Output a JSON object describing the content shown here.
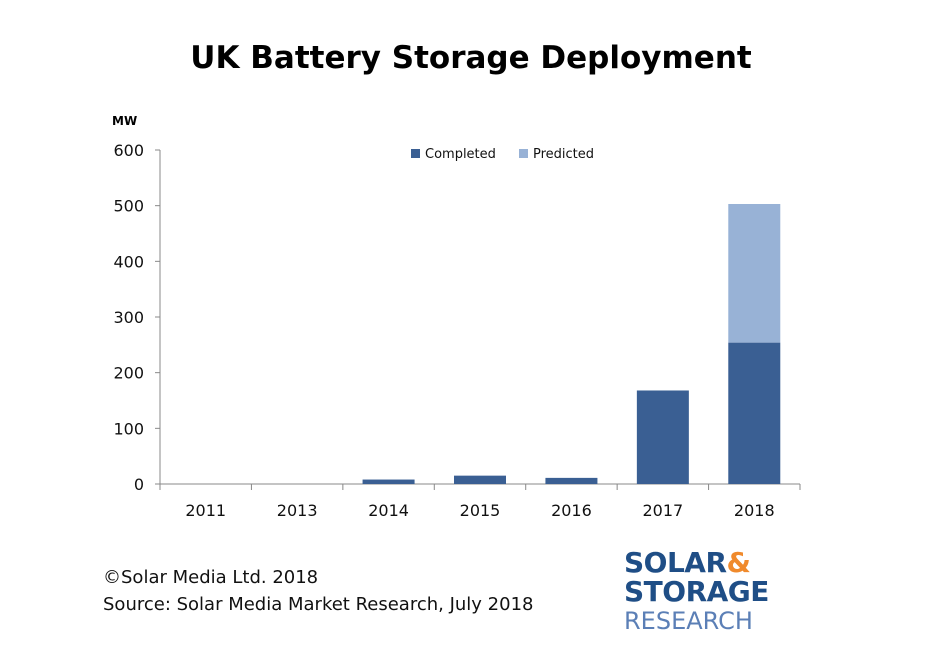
{
  "chart_data": {
    "type": "bar",
    "stacked": true,
    "title": "UK Battery Storage Deployment",
    "ylabel": "MW",
    "xlabel": "",
    "categories": [
      "2011",
      "2013",
      "2014",
      "2015",
      "2016",
      "2017",
      "2018"
    ],
    "series": [
      {
        "name": "Completed",
        "values": [
          0,
          0,
          8,
          15,
          11,
          168,
          254
        ],
        "color": "#3a5f93"
      },
      {
        "name": "Predicted",
        "values": [
          0,
          0,
          0,
          0,
          0,
          0,
          249
        ],
        "color": "#98b2d6"
      }
    ],
    "ylim": [
      0,
      600
    ],
    "yticks": [
      "0",
      "100",
      "200",
      "300",
      "400",
      "500",
      "600"
    ],
    "grid": false,
    "legend_position": "top-center"
  },
  "footer": {
    "copyright": "©Solar Media Ltd. 2018",
    "source": "Source: Solar Media Market Research, July 2018"
  },
  "logo": {
    "line1": "SOLAR",
    "amp": "&",
    "line2": "STORAGE",
    "line3": "RESEARCH"
  }
}
